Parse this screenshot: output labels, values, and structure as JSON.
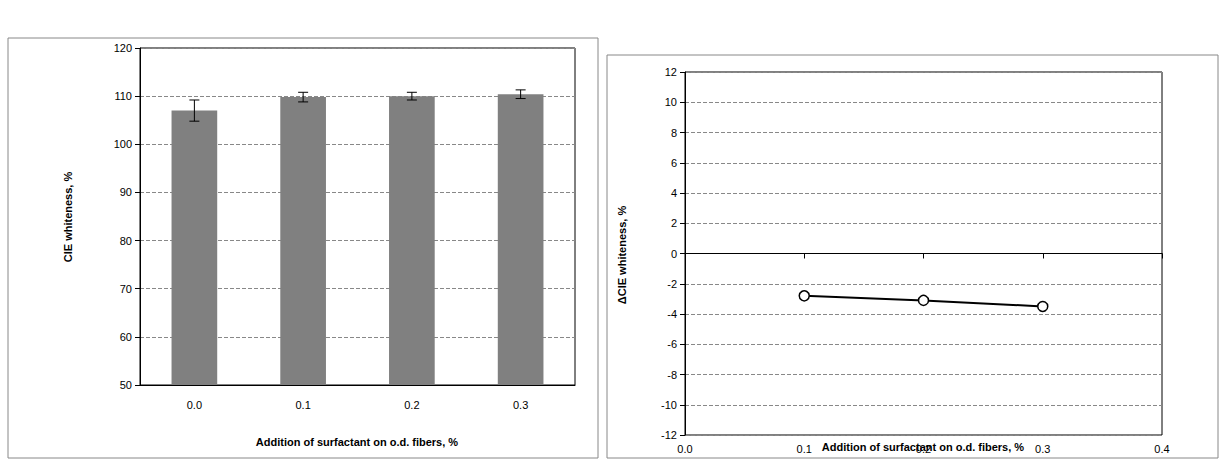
{
  "chart_data": [
    {
      "type": "bar",
      "categories": [
        "0.0",
        "0.1",
        "0.2",
        "0.3"
      ],
      "values": [
        107,
        109.8,
        110,
        110.4
      ],
      "errors": [
        2.2,
        1,
        0.8,
        0.9
      ],
      "color": "#808080",
      "ylim": [
        50,
        120
      ],
      "yticks": [
        50,
        60,
        70,
        80,
        90,
        100,
        110,
        120
      ],
      "grid": true,
      "x_label": "Addition of surfactant on o.d. fibers, %",
      "y_label": "CIE whiteness, %"
    },
    {
      "type": "line",
      "x": [
        0.1,
        0.2,
        0.3
      ],
      "values": [
        -2.8,
        -3.1,
        -3.5
      ],
      "color": "#000000",
      "marker": "circle",
      "xlim": [
        0,
        0.4
      ],
      "xticks": [
        {
          "value": 0,
          "label": "0.0"
        },
        0.1,
        0.2,
        0.3,
        0.4
      ],
      "ylim": [
        -12,
        12
      ],
      "yticks": [
        -12,
        -10,
        -8,
        -6,
        -4,
        -2,
        0,
        2,
        4,
        6,
        8,
        10,
        12
      ],
      "grid": true,
      "x_label": "Addition of surfactant on o.d. fibers, %",
      "y_label": "ΔCIE whiteness, %"
    }
  ]
}
